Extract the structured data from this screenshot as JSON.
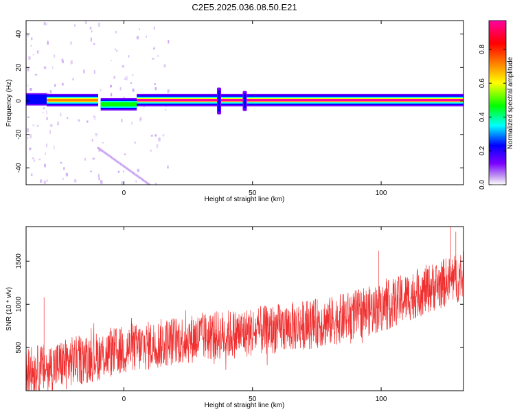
{
  "figure": {
    "title": "C2E5.2025.036.08.50.E21"
  },
  "chart_data": [
    {
      "type": "heatmap",
      "xlabel": "Height of straight line (km)",
      "ylabel": "Frequency (Hz)",
      "xlim": [
        -38,
        132
      ],
      "ylim": [
        -50,
        48
      ],
      "x_ticks": [
        0,
        50,
        100
      ],
      "y_ticks": [
        -40,
        -20,
        0,
        20,
        40
      ],
      "colorbar": {
        "label": "Normalized spectral amplitude",
        "range": [
          0,
          0.97
        ],
        "ticks": [
          0.0,
          0.2,
          0.4,
          0.6,
          0.8
        ],
        "tick_labels": [
          "0.0",
          "0.2",
          "0.4",
          "0.6",
          "0.8"
        ],
        "colormap": [
          "#ffffff",
          "#c39bf0",
          "#7a00ff",
          "#0000ff",
          "#00ffff",
          "#00ff00",
          "#ffff00",
          "#ff7f00",
          "#ff0000",
          "#ff00a0"
        ]
      },
      "features": {
        "main_carrier": {
          "description": "continuous line near 0 Hz",
          "segments": [
            {
              "x": [
                -38,
                -30
              ],
              "freq_hz": 1.0,
              "amplitude": 0.35
            },
            {
              "x": [
                -30,
                -10
              ],
              "freq_hz": 0.5,
              "amplitude": 0.75
            },
            {
              "x": [
                -9,
                5
              ],
              "freq_hz": -2.0,
              "amplitude": 0.5
            },
            {
              "x": [
                5,
                132
              ],
              "freq_hz": 0.5,
              "amplitude": 0.95
            }
          ]
        },
        "vertical_bursts": [
          {
            "x": 37,
            "freq_range": [
              -8,
              8
            ]
          },
          {
            "x": 47,
            "freq_range": [
              -6,
              6
            ]
          }
        ],
        "diagonal_artifact": {
          "x": [
            -10,
            10
          ],
          "freq_hz": [
            -28,
            -50
          ]
        },
        "noise_region_x": [
          -38,
          10
        ]
      }
    },
    {
      "type": "line",
      "xlabel": "Height of straight line (km)",
      "ylabel": "SNR (10 * v/v)",
      "xlim": [
        -38,
        132
      ],
      "ylim": [
        0,
        1900
      ],
      "x_ticks": [
        0,
        50,
        100
      ],
      "y_ticks": [
        500,
        1000,
        1500
      ],
      "color": "#f03030",
      "baseline_x": [
        -38,
        -30,
        -20,
        -10,
        0,
        10,
        20,
        30,
        40,
        50,
        60,
        70,
        80,
        90,
        100,
        110,
        120,
        132
      ],
      "baseline_y": [
        220,
        260,
        340,
        400,
        470,
        520,
        580,
        620,
        650,
        680,
        720,
        760,
        800,
        880,
        960,
        1080,
        1200,
        1330
      ],
      "spread": 160,
      "spikes": [
        {
          "x": -31,
          "y": 1080
        },
        {
          "x": 99,
          "y": 1620
        },
        {
          "x": 127,
          "y": 1900
        },
        {
          "x": 129,
          "y": 1840
        }
      ]
    }
  ]
}
